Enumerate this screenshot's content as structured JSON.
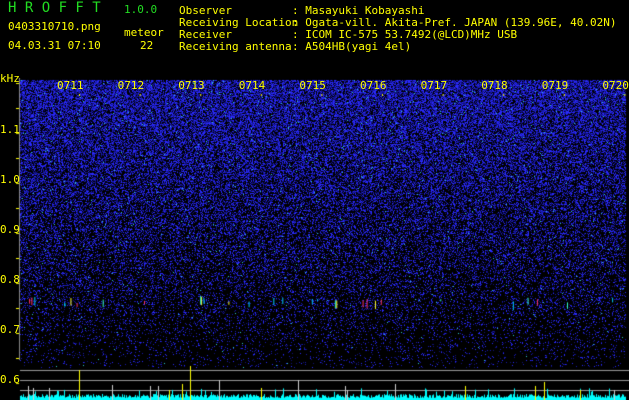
{
  "app": {
    "name": "H R O F F T",
    "version": "1.0.0"
  },
  "file": {
    "name": "0403310710.png",
    "datetime": "04.03.31 07:10"
  },
  "meteor": {
    "label": "meteor",
    "count": "22"
  },
  "info": [
    {
      "label": "Observer",
      "value": ": Masayuki Kobayashi"
    },
    {
      "label": "Receiving Location",
      "value": ": Ogata-vill. Akita-Pref. JAPAN (139.96E, 40.02N)"
    },
    {
      "label": "Receiver",
      "value": ": ICOM IC-575 53.7492(@LCD)MHz USB"
    },
    {
      "label": "Receiving antenna",
      "value": ": A504HB(yagi 4el)"
    }
  ],
  "spectrogram": {
    "y_unit": "kHz",
    "y_ticks": [
      "1.1",
      "1.0",
      "0.9",
      "0.8",
      "0.7",
      "0.6"
    ],
    "x_ticks": [
      "0711",
      "0712",
      "0713",
      "0714",
      "0715",
      "0716",
      "0717",
      "0718",
      "0719",
      "0720"
    ],
    "colors": {
      "text": "#ffff00",
      "title": "#22dd22",
      "noise": "#1a1acc",
      "bars": "#00ffff",
      "spikes": "#ffff00"
    }
  }
}
